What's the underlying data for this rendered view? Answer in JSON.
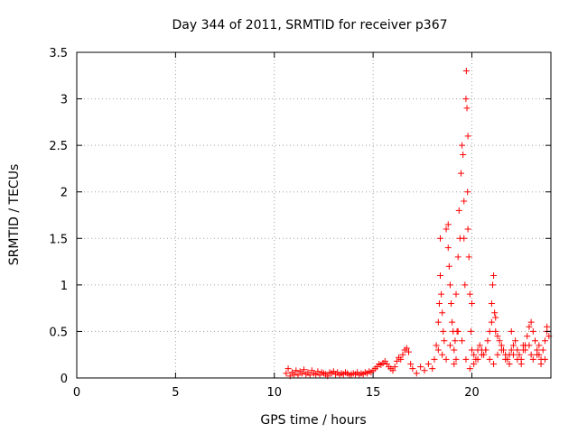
{
  "chart_data": {
    "type": "scatter",
    "title": "Day 344 of 2011, SRMTID for receiver p367",
    "xlabel": "GPS time / hours",
    "ylabel": "SRMTID / TECUs",
    "xlim": [
      0,
      24
    ],
    "ylim": [
      0,
      3.5
    ],
    "x_ticks": [
      0,
      5,
      10,
      15,
      20
    ],
    "y_ticks": [
      0,
      0.5,
      1,
      1.5,
      2,
      2.5,
      3,
      3.5
    ],
    "x_tick_labels": [
      "0",
      "5",
      "10",
      "15",
      "20"
    ],
    "y_tick_labels": [
      "0",
      "0.5",
      "1",
      "1.5",
      "2",
      "2.5",
      "3",
      "3.5"
    ],
    "grid": true,
    "marker": "plus",
    "color": "#ff0000",
    "series": [
      {
        "name": "SRMTID",
        "x": [
          10.6,
          10.7,
          10.8,
          10.9,
          11.0,
          11.1,
          11.2,
          11.3,
          11.4,
          11.5,
          11.6,
          11.7,
          11.8,
          11.9,
          12.0,
          12.1,
          12.2,
          12.3,
          12.4,
          12.5,
          12.6,
          12.7,
          12.8,
          12.9,
          13.0,
          13.1,
          13.2,
          13.3,
          13.4,
          13.5,
          13.6,
          13.7,
          13.8,
          13.9,
          14.0,
          14.1,
          14.2,
          14.3,
          14.4,
          14.5,
          14.6,
          14.7,
          14.8,
          14.9,
          15.0,
          15.1,
          15.2,
          15.3,
          15.4,
          15.5,
          15.6,
          15.7,
          15.8,
          15.9,
          16.0,
          16.1,
          16.2,
          16.3,
          16.4,
          16.5,
          16.6,
          16.7,
          16.8,
          16.9,
          17.0,
          17.2,
          17.4,
          17.6,
          17.8,
          18.0,
          18.1,
          18.2,
          18.3,
          18.35,
          18.4,
          18.45,
          18.5,
          18.55,
          18.6,
          18.7,
          18.8,
          18.85,
          18.9,
          18.95,
          19.0,
          19.05,
          19.1,
          19.15,
          19.2,
          19.25,
          19.3,
          19.35,
          19.4,
          19.45,
          19.5,
          19.55,
          19.6,
          19.65,
          19.7,
          19.72,
          19.75,
          19.78,
          19.8,
          19.85,
          19.9,
          19.95,
          20.0,
          20.1,
          20.2,
          20.3,
          20.4,
          20.5,
          20.6,
          20.7,
          20.8,
          20.9,
          21.0,
          21.05,
          21.1,
          21.15,
          21.2,
          21.3,
          21.4,
          21.5,
          21.6,
          21.7,
          21.8,
          21.9,
          22.0,
          22.1,
          22.2,
          22.3,
          22.4,
          22.5,
          22.6,
          22.7,
          22.8,
          22.9,
          23.0,
          23.1,
          23.2,
          23.3,
          23.4,
          23.5,
          23.6,
          23.7,
          23.8,
          23.9,
          18.3,
          18.5,
          18.7,
          18.9,
          19.1,
          19.3,
          19.5,
          19.7,
          19.9,
          20.1,
          20.3,
          20.5,
          20.7,
          20.9,
          21.1,
          21.3,
          21.5,
          21.7,
          21.9,
          22.1,
          22.3,
          22.5,
          22.7,
          22.9,
          23.1,
          23.3,
          23.5,
          23.7,
          18.4,
          18.8,
          19.2,
          19.6,
          19.8,
          20.0,
          21.0,
          21.2,
          22.0,
          22.6,
          23.0,
          23.4,
          23.8
        ],
        "y": [
          0.05,
          0.1,
          0.02,
          0.06,
          0.04,
          0.08,
          0.03,
          0.07,
          0.05,
          0.09,
          0.04,
          0.06,
          0.03,
          0.08,
          0.05,
          0.04,
          0.07,
          0.03,
          0.06,
          0.05,
          0.04,
          0.02,
          0.06,
          0.05,
          0.07,
          0.04,
          0.06,
          0.03,
          0.05,
          0.04,
          0.06,
          0.05,
          0.03,
          0.04,
          0.05,
          0.04,
          0.06,
          0.03,
          0.05,
          0.04,
          0.06,
          0.05,
          0.07,
          0.06,
          0.08,
          0.1,
          0.12,
          0.15,
          0.14,
          0.16,
          0.18,
          0.15,
          0.12,
          0.1,
          0.08,
          0.12,
          0.18,
          0.22,
          0.2,
          0.25,
          0.3,
          0.32,
          0.28,
          0.15,
          0.1,
          0.05,
          0.12,
          0.08,
          0.15,
          0.1,
          0.2,
          0.35,
          0.6,
          0.8,
          1.1,
          0.9,
          0.7,
          0.5,
          0.4,
          1.6,
          1.4,
          1.2,
          1.0,
          0.8,
          0.6,
          0.5,
          0.3,
          0.4,
          0.2,
          0.5,
          1.3,
          1.8,
          1.5,
          2.2,
          2.5,
          2.4,
          1.9,
          1.0,
          3.0,
          3.3,
          2.9,
          2.0,
          1.6,
          1.3,
          0.9,
          0.5,
          0.3,
          0.25,
          0.2,
          0.3,
          0.35,
          0.3,
          0.25,
          0.3,
          0.4,
          0.5,
          0.8,
          1.0,
          1.1,
          0.7,
          0.5,
          0.45,
          0.4,
          0.35,
          0.3,
          0.25,
          0.2,
          0.25,
          0.3,
          0.35,
          0.4,
          0.3,
          0.25,
          0.2,
          0.3,
          0.35,
          0.45,
          0.55,
          0.6,
          0.5,
          0.4,
          0.3,
          0.25,
          0.2,
          0.3,
          0.4,
          0.5,
          0.45,
          0.3,
          0.25,
          0.2,
          0.35,
          0.15,
          0.5,
          0.4,
          0.2,
          0.1,
          0.15,
          0.2,
          0.25,
          0.3,
          0.2,
          0.15,
          0.25,
          0.3,
          0.2,
          0.15,
          0.25,
          0.2,
          0.15,
          0.3,
          0.35,
          0.2,
          0.25,
          0.15,
          0.2,
          1.5,
          1.65,
          0.9,
          1.5,
          2.6,
          0.8,
          0.6,
          0.65,
          0.5,
          0.35,
          0.25,
          0.35,
          0.55
        ]
      }
    ]
  }
}
